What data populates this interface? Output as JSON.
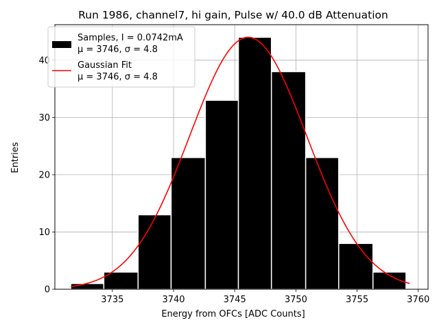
{
  "chart_data": {
    "type": "bar",
    "title": "Run 1986, channel7, hi gain, Pulse w/ 40.0 dB Attenuation",
    "xlabel": "Energy from OFCs [ADC Counts]",
    "ylabel": "Entries",
    "xlim": [
      3730.3,
      3760.8
    ],
    "ylim": [
      0,
      46.2
    ],
    "xticks": [
      3735,
      3740,
      3745,
      3750,
      3755,
      3760
    ],
    "yticks": [
      0,
      10,
      20,
      30,
      40
    ],
    "grid": true,
    "histogram": {
      "bin_edges": [
        3731.6,
        3734.3,
        3737.1,
        3739.8,
        3742.6,
        3745.3,
        3748.0,
        3750.8,
        3753.5,
        3756.3,
        3759.0
      ],
      "counts": [
        1,
        3,
        13,
        23,
        33,
        44,
        38,
        23,
        8,
        3
      ],
      "color": "#000000"
    },
    "gaussian_fit": {
      "mu": 3746.1,
      "sigma": 4.8,
      "amplitude": 44,
      "x_range": [
        3731.6,
        3759.3
      ],
      "color": "#ff0000"
    },
    "legend": {
      "placement": "top-left",
      "entries": [
        {
          "line1": "Samples, I = 0.0742mA",
          "line2": "μ = 3746, σ = 4.8"
        },
        {
          "line1": "Gaussian Fit",
          "line2": "μ = 3746, σ = 4.8"
        }
      ]
    }
  }
}
